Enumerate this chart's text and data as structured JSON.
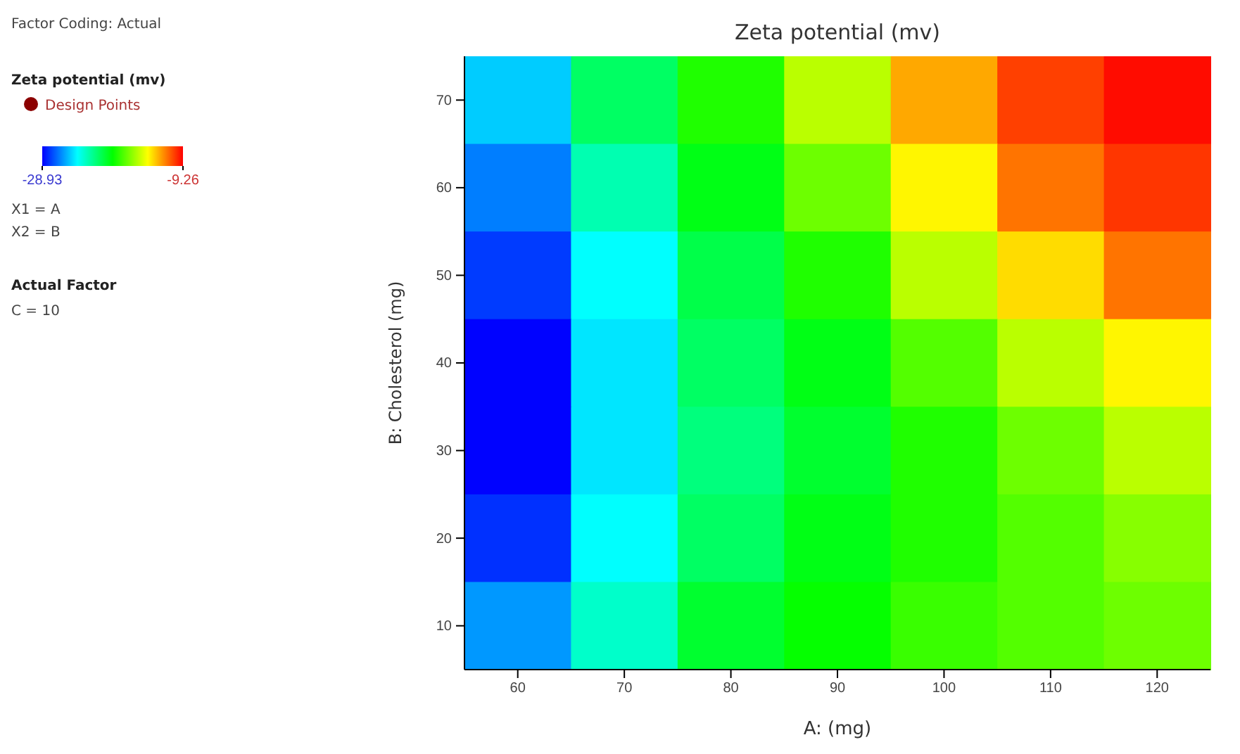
{
  "chart_data": {
    "type": "heatmap",
    "title": "Zeta potential  (mv)",
    "xlabel": "A: (mg)",
    "ylabel": "B: Cholesterol (mg)",
    "legend_title": "Zeta potential  (mv)",
    "annotations": [
      "Factor Coding: Actual",
      "Design Points",
      "X1 = A",
      "X2 = B",
      "Actual Factor",
      "C = 10"
    ],
    "categories": [
      "60",
      "70",
      "80",
      "90",
      "100",
      "110",
      "120"
    ],
    "y_categories": [
      "70",
      "60",
      "50",
      "40",
      "30",
      "20",
      "10"
    ],
    "cells": [
      [
        -25,
        -21,
        -18.5,
        -15.5,
        -12.5,
        -10.5,
        -9.5
      ],
      [
        -26.5,
        -22.5,
        -19.5,
        -17,
        -14,
        -11.5,
        -10.3
      ],
      [
        -27.8,
        -24,
        -20.5,
        -18.5,
        -15.5,
        -13.5,
        -11.5
      ],
      [
        -28.9,
        -24.5,
        -21,
        -19.5,
        -17.5,
        -15.5,
        -14
      ],
      [
        -28.9,
        -24.5,
        -21.5,
        -20,
        -18.5,
        -17,
        -15.5
      ],
      [
        -28,
        -24,
        -21,
        -19.5,
        -18.5,
        -17.5,
        -16.5
      ],
      [
        -26,
        -23,
        -20,
        -19,
        -18,
        -17.5,
        -17
      ]
    ],
    "clim": [
      -28.93,
      -9.26
    ],
    "cticks": [
      -28.93,
      -9.26
    ],
    "grid": false
  }
}
